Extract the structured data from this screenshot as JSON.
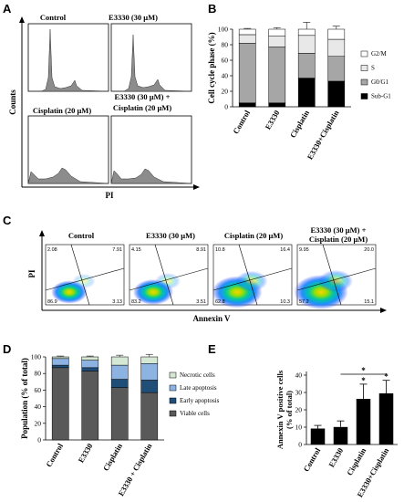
{
  "panels": {
    "a": "A",
    "b": "B",
    "c": "C",
    "d": "D",
    "e": "E"
  },
  "panel_a": {
    "titles": [
      "Control",
      "E3330 (30 μM)",
      "Cisplatin (20 μM)",
      "E3330 (30 μM) +",
      "Cisplatin (20 μM)"
    ],
    "ylabel": "Counts",
    "xlabel": "PI"
  },
  "panel_c": {
    "titles": [
      "Control",
      "E3330 (30 μM)",
      "Cisplatin (20 μM)",
      "E3330 (30 μM) +",
      "Cisplatin (20 μM)"
    ],
    "ylabel": "PI",
    "xlabel": "Annexin V",
    "quadrants": [
      [
        "2.08",
        "7.91",
        "86.9",
        "3.13"
      ],
      [
        "4.15",
        "8.91",
        "83.2",
        "3.51"
      ],
      [
        "10.8",
        "16.4",
        "62.8",
        "10.3"
      ],
      [
        "9.95",
        "20.0",
        "57.2",
        "15.1"
      ]
    ]
  },
  "chart_data": [
    {
      "type": "bar",
      "id": "B",
      "stacked": true,
      "categories": [
        "Control",
        "E3330",
        "Cisplatin",
        "E3330+Cisplatin"
      ],
      "ylabel": "Cell cycle phase (%)",
      "ylim": [
        0,
        100
      ],
      "yticks": [
        "0",
        "20",
        "40",
        "60",
        "80",
        "100"
      ],
      "series": [
        {
          "name": "Sub-G1",
          "values": [
            5,
            5,
            37,
            33
          ],
          "errors": [
            2,
            1,
            3,
            4
          ],
          "color": "#000000"
        },
        {
          "name": "G0/G1",
          "values": [
            77,
            72,
            32,
            32
          ],
          "errors": [
            2,
            2,
            10,
            8
          ],
          "color": "#a6a6a6"
        },
        {
          "name": "S",
          "values": [
            11,
            14,
            23,
            22
          ],
          "errors": [
            0,
            0,
            0,
            0
          ],
          "color": "#e8e8e8"
        },
        {
          "name": "G2/M",
          "values": [
            7,
            9,
            8,
            13
          ],
          "errors": [
            1,
            2,
            9,
            4
          ],
          "color": "#ffffff"
        }
      ],
      "legend_order": [
        "G2/M",
        "S",
        "G0/G1",
        "Sub-G1"
      ],
      "legend": "right"
    },
    {
      "type": "bar",
      "id": "D",
      "stacked": true,
      "categories": [
        "Control",
        "E3330",
        "Cisplatin",
        "E3330 + Cisplatin"
      ],
      "ylabel": "Population (% of total)",
      "ylim": [
        0,
        100
      ],
      "yticks": [
        "0",
        "20",
        "40",
        "60",
        "80",
        "100"
      ],
      "series": [
        {
          "name": "Viable cells",
          "values": [
            87,
            83,
            63,
            57
          ],
          "errors": [
            2,
            2,
            4,
            4
          ],
          "color": "#595959"
        },
        {
          "name": "Early apoptosis",
          "values": [
            3,
            4,
            10,
            15
          ],
          "errors": [
            1,
            1,
            3,
            3
          ],
          "color": "#1f4e79"
        },
        {
          "name": "Late apoptosis",
          "values": [
            8,
            9,
            17,
            20
          ],
          "errors": [
            1,
            1,
            3,
            4
          ],
          "color": "#8db3e2"
        },
        {
          "name": "Necrotic cells",
          "values": [
            2,
            4,
            10,
            8
          ],
          "errors": [
            1,
            1,
            2,
            3
          ],
          "color": "#d5e8d4"
        }
      ],
      "legend_order": [
        "Necrotic cells",
        "Late apoptosis",
        "Early apoptosis",
        "Viable cells"
      ],
      "legend": "right"
    },
    {
      "type": "bar",
      "id": "E",
      "categories": [
        "Control",
        "E3330",
        "Cisplatin",
        "E3330+Cisplatin"
      ],
      "ylabel": "Annexin V positive cells (% of total)",
      "ylabel_lines": [
        "Annexin V positive cells",
        "(% of total)"
      ],
      "ylim": [
        0,
        40
      ],
      "yticks": [
        "0",
        "10",
        "20",
        "30",
        "40"
      ],
      "values": [
        9.2,
        10.1,
        26.3,
        29.5
      ],
      "errors": [
        1.8,
        3.5,
        8.5,
        7.5
      ],
      "significance": [
        "",
        "",
        "*",
        "*"
      ],
      "bracket": {
        "from": 1,
        "to": 3,
        "label": "*"
      },
      "color": "#000000"
    }
  ]
}
